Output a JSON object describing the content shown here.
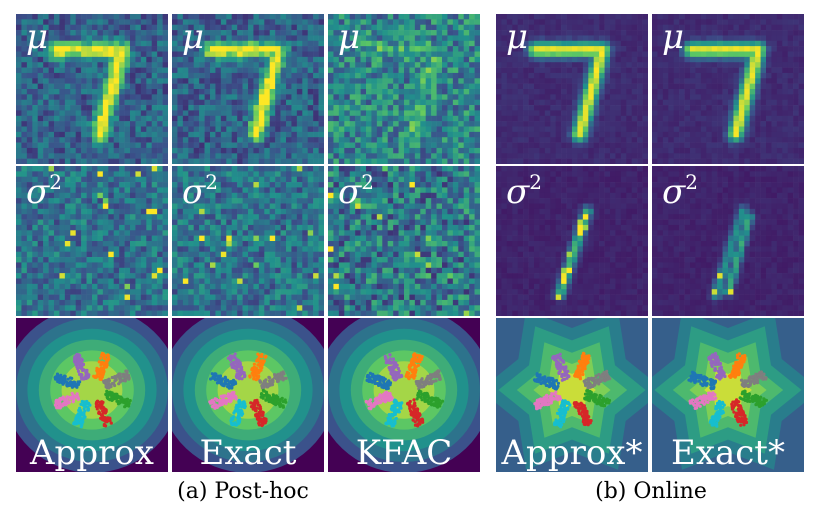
{
  "columns": [
    {
      "id": "approx",
      "row_label": "Approx",
      "group": "posthoc",
      "mean_style": "noisy-digit",
      "var_style": "noise"
    },
    {
      "id": "exact",
      "row_label": "Exact",
      "group": "posthoc",
      "mean_style": "noisy-digit",
      "var_style": "noise"
    },
    {
      "id": "kfac",
      "row_label": "KFAC",
      "group": "posthoc",
      "mean_style": "faint-digit",
      "var_style": "noise-strong"
    },
    {
      "id": "approx-online",
      "row_label": "Approx*",
      "group": "online",
      "mean_style": "smooth-digit",
      "var_style": "stroke"
    },
    {
      "id": "exact-online",
      "row_label": "Exact*",
      "group": "online",
      "mean_style": "smooth-digit",
      "var_style": "stroke-split"
    }
  ],
  "symbols": {
    "mean": "μ",
    "variance_base": "σ",
    "variance_exp": "2"
  },
  "captions": {
    "posthoc": "(a) Post-hoc",
    "online": "(b) Online"
  },
  "colors": {
    "dark": "#440154",
    "mid": "#3b528b",
    "teal": "#21918c",
    "green": "#5ec962",
    "yellow": "#fde725",
    "clusters": [
      "#ff7f0e",
      "#7f7f7f",
      "#2ca02c",
      "#d62728",
      "#17becf",
      "#e377c2",
      "#1f77b4",
      "#9467bd"
    ]
  }
}
